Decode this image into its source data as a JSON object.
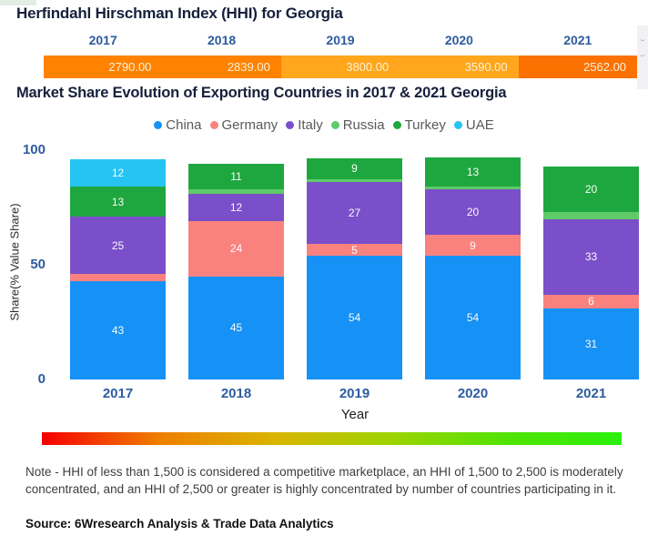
{
  "hhi": {
    "title": "Herfindahl Hirschman Index (HHI) for Georgia",
    "years": [
      "2017",
      "2018",
      "2019",
      "2020",
      "2021"
    ],
    "values": [
      "2790.00",
      "2839.00",
      "3800.00",
      "3590.00",
      "2562.00"
    ],
    "segment_colors": [
      "#ff8201",
      "#ff8201",
      "#ffa61c",
      "#ffa61c",
      "#fb7102"
    ]
  },
  "market": {
    "title": "Market Share Evolution of Exporting Countries in 2017 & 2021 Georgia"
  },
  "chart_data": {
    "type": "bar",
    "stacked": true,
    "title": "Market Share Evolution of Exporting Countries in 2017 & 2021 Georgia",
    "categories": [
      "2017",
      "2018",
      "2019",
      "2020",
      "2021"
    ],
    "series": [
      {
        "name": "China",
        "color": "#1691f6",
        "values": [
          43,
          45,
          54,
          54,
          31
        ]
      },
      {
        "name": "Germany",
        "color": "#f9827e",
        "values": [
          3,
          24,
          5,
          9,
          6
        ]
      },
      {
        "name": "Italy",
        "color": "#7a4fc9",
        "values": [
          25,
          12,
          27,
          20,
          33
        ]
      },
      {
        "name": "Russia",
        "color": "#5ecb68",
        "values": [
          0,
          2,
          1.5,
          1,
          3
        ]
      },
      {
        "name": "Turkey",
        "color": "#1fa73f",
        "values": [
          13,
          11,
          9,
          13,
          20
        ]
      },
      {
        "name": "UAE",
        "color": "#25c4f2",
        "values": [
          12,
          0,
          0,
          0,
          0
        ]
      }
    ],
    "label_min_value": 5,
    "xlabel": "Year",
    "ylabel": "Share(% Value Share)",
    "yticks": [
      0,
      50,
      100
    ],
    "ylim": [
      0,
      100
    ],
    "legend_position": "top",
    "grid": false,
    "tick_color": "#2d5b9e"
  },
  "color_scale": {
    "stops": [
      "#f50000",
      "#ef7e00",
      "#d9b400",
      "#9ed300",
      "#52e305",
      "#2af00c"
    ]
  },
  "footer": {
    "note": "Note - HHI of less than 1,500 is considered a competitive marketplace, an HHI of 1,500 to 2,500 is moderately concentrated, and an HHI of 2,500 or greater is highly concentrated by number of countries participating in it.",
    "source": "Source: 6Wresearch Analysis & Trade Data Analytics"
  }
}
